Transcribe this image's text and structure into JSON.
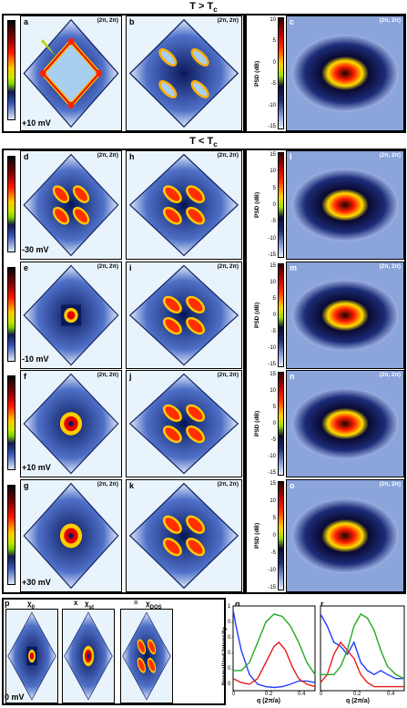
{
  "top_header": "T > T",
  "top_header_sub": "c",
  "mid_header": "T < T",
  "mid_header_sub": "c",
  "coord": "(2π, 2π)",
  "psd_label": "PSD (dB)",
  "psd_ticks_top": [
    "10",
    "5",
    "0",
    "-5",
    "-10",
    "-15"
  ],
  "psd_ticks": [
    "15",
    "10",
    "5",
    "0",
    "-5",
    "-10",
    "-15"
  ],
  "row_top": {
    "a": "a",
    "b": "b",
    "c": "c",
    "energy": "+10 mV"
  },
  "rows": [
    {
      "left": "d",
      "mid": "h",
      "right": "l",
      "energy": "-30 mV"
    },
    {
      "left": "e",
      "mid": "i",
      "right": "m",
      "energy": "-10 mV"
    },
    {
      "left": "f",
      "mid": "j",
      "right": "n",
      "energy": "+10 mV"
    },
    {
      "left": "g",
      "mid": "k",
      "right": "o",
      "energy": "+30 mV"
    }
  ],
  "bottom": {
    "p_label": "p",
    "chi0": "χ",
    "chi0_sub": "0",
    "times": "x",
    "chist": "χ",
    "chist_sub": "st",
    "equals": "=",
    "chidos": "χ",
    "chidos_sub": "DOS",
    "energy": "0 mV",
    "q_label": "q",
    "r_label": "r",
    "ylabel": "Normalized Intensity",
    "xlabel": "q (2π/a)",
    "q_yticks": [
      "1",
      "0.8",
      "0.6",
      "0.4",
      "0.2",
      "0"
    ],
    "q_xticks": [
      "0",
      "0.2",
      "0.4"
    ],
    "r_xticks": [
      "0",
      "0.2",
      "0.4"
    ]
  },
  "chart_data": [
    {
      "type": "line",
      "title": "q",
      "xlabel": "q (2π/a)",
      "ylabel": "Normalized Intensity",
      "xlim": [
        0,
        0.5
      ],
      "ylim": [
        0,
        1.05
      ],
      "series": [
        {
          "color": "#1f3cff",
          "x": [
            0,
            0.02,
            0.05,
            0.1,
            0.15,
            0.2,
            0.25,
            0.3,
            0.35,
            0.4,
            0.45,
            0.5
          ],
          "y": [
            1.0,
            0.78,
            0.5,
            0.2,
            0.08,
            0.05,
            0.04,
            0.05,
            0.08,
            0.12,
            0.12,
            0.1
          ]
        },
        {
          "color": "#e51b1b",
          "x": [
            0,
            0.05,
            0.1,
            0.15,
            0.2,
            0.25,
            0.28,
            0.32,
            0.36,
            0.4,
            0.45,
            0.5
          ],
          "y": [
            0.15,
            0.1,
            0.08,
            0.15,
            0.35,
            0.55,
            0.6,
            0.5,
            0.3,
            0.15,
            0.08,
            0.05
          ]
        },
        {
          "color": "#22aa22",
          "x": [
            0,
            0.05,
            0.1,
            0.15,
            0.2,
            0.25,
            0.3,
            0.35,
            0.4,
            0.45,
            0.5
          ],
          "y": [
            0.25,
            0.25,
            0.35,
            0.6,
            0.85,
            0.95,
            0.92,
            0.8,
            0.6,
            0.35,
            0.2
          ]
        }
      ]
    },
    {
      "type": "line",
      "title": "r",
      "xlabel": "q (2π/a)",
      "ylabel": "",
      "xlim": [
        0,
        0.5
      ],
      "ylim": [
        0,
        1.05
      ],
      "series": [
        {
          "color": "#1f3cff",
          "x": [
            0,
            0.04,
            0.08,
            0.12,
            0.16,
            0.2,
            0.24,
            0.28,
            0.32,
            0.36,
            0.4,
            0.45,
            0.5
          ],
          "y": [
            0.95,
            0.8,
            0.6,
            0.55,
            0.45,
            0.6,
            0.35,
            0.25,
            0.2,
            0.25,
            0.2,
            0.15,
            0.15
          ]
        },
        {
          "color": "#e51b1b",
          "x": [
            0,
            0.04,
            0.08,
            0.12,
            0.16,
            0.2,
            0.24,
            0.28,
            0.32,
            0.36,
            0.4,
            0.45,
            0.5
          ],
          "y": [
            0.1,
            0.2,
            0.45,
            0.6,
            0.5,
            0.4,
            0.2,
            0.1,
            0.05,
            0.05,
            0.05,
            0.05,
            0.05
          ]
        },
        {
          "color": "#22aa22",
          "x": [
            0,
            0.04,
            0.08,
            0.12,
            0.16,
            0.2,
            0.24,
            0.28,
            0.32,
            0.36,
            0.4,
            0.45,
            0.5
          ],
          "y": [
            0.2,
            0.2,
            0.2,
            0.3,
            0.5,
            0.8,
            0.95,
            0.9,
            0.75,
            0.5,
            0.3,
            0.2,
            0.15
          ]
        }
      ]
    }
  ]
}
